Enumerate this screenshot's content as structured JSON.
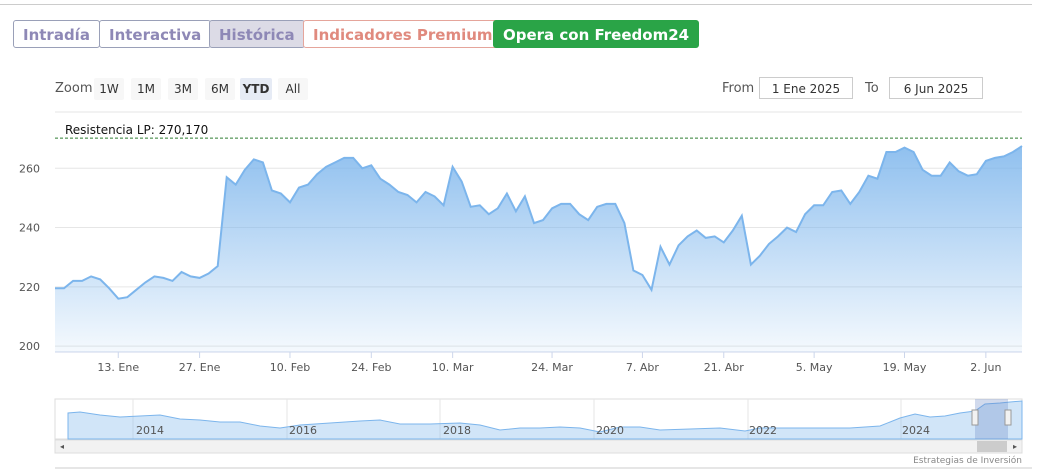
{
  "ui": {
    "tabs": [
      "Intradía",
      "Interactiva",
      "Histórica",
      "Indicadores Premium",
      "Opera con Freedom24"
    ],
    "zoom_label": "Zoom",
    "zoom_buttons": [
      "1W",
      "1M",
      "3M",
      "6M",
      "YTD",
      "All"
    ],
    "from_label": "From",
    "from_value": "1 Ene 2025",
    "to_label": "To",
    "to_value": "6 Jun 2025",
    "navigator_labels": [
      "2014",
      "2016",
      "2018",
      "2020",
      "2022",
      "2024"
    ],
    "credit": "Estrategias de Inversión"
  },
  "chart_data": {
    "type": "area",
    "categories": [
      null,
      null,
      null,
      null,
      null,
      null,
      null,
      "13. Ene",
      null,
      null,
      null,
      null,
      null,
      null,
      null,
      null,
      "27. Ene",
      null,
      null,
      null,
      null,
      null,
      null,
      null,
      null,
      null,
      "10. Feb",
      null,
      null,
      null,
      null,
      null,
      null,
      null,
      null,
      "24. Feb",
      null,
      null,
      null,
      null,
      null,
      null,
      null,
      null,
      "10. Mar",
      null,
      null,
      null,
      null,
      null,
      null,
      null,
      null,
      null,
      null,
      "24. Mar",
      null,
      null,
      null,
      null,
      null,
      null,
      null,
      null,
      null,
      "7. Abr",
      null,
      null,
      null,
      null,
      null,
      null,
      null,
      null,
      "21. Abr",
      null,
      null,
      null,
      null,
      null,
      null,
      null,
      null,
      null,
      "5. May",
      null,
      null,
      null,
      null,
      null,
      null,
      null,
      null,
      null,
      "19. May",
      null,
      null,
      null,
      null,
      null,
      null,
      null,
      null,
      "2. Jun",
      null,
      null,
      null,
      null
    ],
    "series": [
      {
        "color": "#7cb5ec",
        "values": [
          219.5,
          219.5,
          222,
          222,
          223.5,
          222.5,
          219.5,
          216,
          216.5,
          219,
          221.5,
          223.5,
          223,
          222,
          225,
          223.5,
          223,
          224.5,
          227,
          257,
          254.5,
          259.5,
          263,
          262,
          252.5,
          251.5,
          248.5,
          253.5,
          254.5,
          258,
          260.5,
          262,
          263.5,
          263.5,
          260,
          261,
          256.5,
          254.5,
          252,
          251,
          248.5,
          252,
          250.5,
          247.5,
          260.5,
          255.5,
          247,
          247.5,
          244.5,
          246.5,
          251.5,
          245.5,
          250.5,
          241.5,
          242.5,
          246.5,
          248,
          248,
          244.5,
          242.5,
          247,
          248,
          248,
          241.5,
          225.5,
          224,
          219,
          233.5,
          227.5,
          234,
          237,
          239,
          236.5,
          237,
          235,
          239,
          244,
          227.5,
          230.5,
          234.5,
          237,
          240,
          238.5,
          244.5,
          247.5,
          247.5,
          252,
          252.5,
          248,
          252,
          257.5,
          256.5,
          265.5,
          265.5,
          267,
          265.5,
          259.5,
          257.5,
          257.5,
          262,
          259,
          257.5,
          258,
          262.5,
          263.5,
          264,
          265.5,
          267.5
        ]
      }
    ],
    "annotations": [
      {
        "label": "Resistencia LP: 270,170",
        "value": 270.17
      }
    ],
    "ylim": [
      198,
      279
    ],
    "yticks": [
      200,
      220,
      240,
      260
    ],
    "grid": true
  }
}
